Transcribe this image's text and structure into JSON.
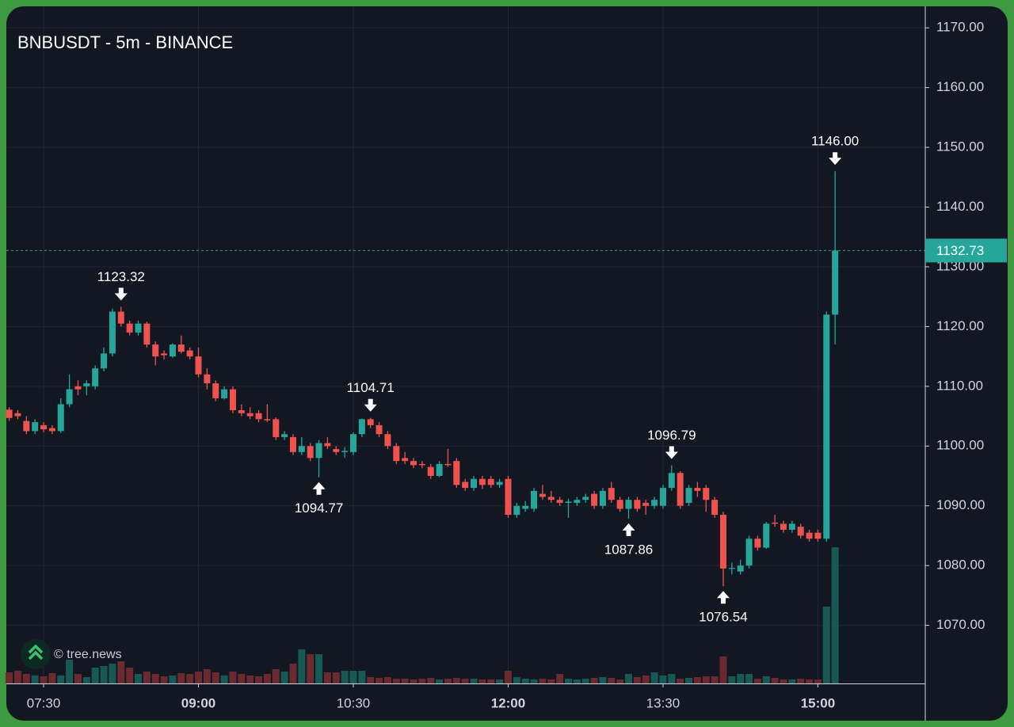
{
  "chart_data": {
    "type": "candlestick",
    "title": "BNBUSDT - 5m - BINANCE",
    "watermark": "© tree.news",
    "categories": [
      "07:10",
      "07:15",
      "07:20",
      "07:25",
      "07:30",
      "07:35",
      "07:40",
      "07:45",
      "07:50",
      "07:55",
      "08:00",
      "08:05",
      "08:10",
      "08:15",
      "08:20",
      "08:25",
      "08:30",
      "08:35",
      "08:40",
      "08:45",
      "08:50",
      "08:55",
      "09:00",
      "09:05",
      "09:10",
      "09:15",
      "09:20",
      "09:25",
      "09:30",
      "09:35",
      "09:40",
      "09:45",
      "09:50",
      "09:55",
      "10:00",
      "10:05",
      "10:10",
      "10:15",
      "10:20",
      "10:25",
      "10:30",
      "10:35",
      "10:40",
      "10:45",
      "10:50",
      "10:55",
      "11:00",
      "11:05",
      "11:10",
      "11:15",
      "11:20",
      "11:25",
      "11:30",
      "11:35",
      "11:40",
      "11:45",
      "11:50",
      "11:55",
      "12:00",
      "12:05",
      "12:10",
      "12:15",
      "12:20",
      "12:25",
      "12:30",
      "12:35",
      "12:40",
      "12:45",
      "12:50",
      "12:55",
      "13:00",
      "13:05",
      "13:10",
      "13:15",
      "13:20",
      "13:25",
      "13:30",
      "13:35",
      "13:40",
      "13:45",
      "13:50",
      "13:55",
      "14:00",
      "14:05",
      "14:10",
      "14:15",
      "14:20",
      "14:25",
      "14:30",
      "14:35",
      "14:40",
      "14:45",
      "14:50",
      "14:55",
      "15:00",
      "15:05",
      "15:10"
    ],
    "open": [
      1106.1,
      1105.5,
      1104.2,
      1102.5,
      1103.5,
      1103.0,
      1102.5,
      1107.0,
      1110.0,
      1110.0,
      1110.0,
      1113.0,
      1115.5,
      1122.5,
      1120.5,
      1119.0,
      1120.5,
      1117.0,
      1115.5,
      1115.0,
      1117.0,
      1116.0,
      1115.0,
      1112.0,
      1110.5,
      1108.0,
      1109.5,
      1106.0,
      1105.5,
      1105.5,
      1104.5,
      1104.5,
      1101.5,
      1101.5,
      1099.0,
      1100.0,
      1098.0,
      1100.5,
      1099.5,
      1099.0,
      1099.0,
      1102.0,
      1104.5,
      1103.5,
      1102.0,
      1100.0,
      1098.0,
      1097.5,
      1097.0,
      1096.5,
      1095.0,
      1097.0,
      1097.5,
      1094.0,
      1093.0,
      1094.5,
      1094.5,
      1093.5,
      1094.5,
      1088.5,
      1089.5,
      1089.5,
      1092.0,
      1091.5,
      1091.0,
      1090.5,
      1090.5,
      1091.0,
      1092.0,
      1090.0,
      1093.0,
      1091.0,
      1089.5,
      1091.0,
      1090.5,
      1090.0,
      1090.0,
      1093.0,
      1095.5,
      1090.5,
      1093.0,
      1093.0,
      1091.0,
      1088.5,
      1079.5,
      1079.0,
      1080.0,
      1084.5,
      1083.0,
      1087.2,
      1087.0,
      1086.0,
      1086.5,
      1085.5,
      1085.5,
      1084.5,
      1122.0
    ],
    "high": [
      1106.5,
      1106.0,
      1105.0,
      1104.5,
      1104.0,
      1103.5,
      1108.0,
      1112.0,
      1111.0,
      1111.0,
      1113.5,
      1116.5,
      1123.0,
      1123.32,
      1121.0,
      1121.0,
      1120.8,
      1117.5,
      1116.0,
      1117.2,
      1118.5,
      1116.5,
      1116.5,
      1113.0,
      1111.0,
      1110.0,
      1110.0,
      1107.0,
      1106.5,
      1106.0,
      1107.0,
      1104.8,
      1102.5,
      1102.0,
      1101.5,
      1100.5,
      1101.0,
      1101.5,
      1100.0,
      1099.8,
      1102.3,
      1104.6,
      1104.71,
      1104.0,
      1102.5,
      1100.5,
      1099.0,
      1098.0,
      1097.5,
      1097.0,
      1097.5,
      1099.5,
      1098.0,
      1094.5,
      1095.0,
      1095.0,
      1095.0,
      1094.5,
      1095.0,
      1090.5,
      1090.8,
      1093.0,
      1093.5,
      1092.5,
      1091.5,
      1091.2,
      1091.5,
      1092.0,
      1092.5,
      1093.0,
      1094.0,
      1091.5,
      1091.5,
      1091.5,
      1091.0,
      1091.5,
      1093.5,
      1096.79,
      1095.8,
      1093.5,
      1094.0,
      1093.5,
      1091.5,
      1089.0,
      1080.5,
      1081.0,
      1085.0,
      1085.0,
      1087.3,
      1088.5,
      1087.5,
      1087.5,
      1087.0,
      1086.0,
      1086.0,
      1122.5,
      1146.0
    ],
    "low": [
      1104.2,
      1104.5,
      1102.0,
      1102.0,
      1102.3,
      1102.0,
      1102.2,
      1106.5,
      1108.5,
      1108.5,
      1109.5,
      1112.5,
      1115.0,
      1120.0,
      1118.5,
      1118.5,
      1116.5,
      1113.5,
      1114.5,
      1114.8,
      1115.5,
      1114.5,
      1111.5,
      1109.5,
      1107.5,
      1107.8,
      1105.5,
      1105.0,
      1104.5,
      1104.0,
      1104.0,
      1101.0,
      1101.0,
      1098.5,
      1098.5,
      1097.5,
      1094.77,
      1099.5,
      1098.5,
      1098.0,
      1098.5,
      1101.5,
      1103.0,
      1101.5,
      1099.5,
      1097.0,
      1097.0,
      1096.3,
      1096.3,
      1094.5,
      1094.8,
      1096.5,
      1093.0,
      1092.5,
      1092.5,
      1092.8,
      1093.0,
      1093.0,
      1088.0,
      1088.0,
      1089.0,
      1089.0,
      1091.0,
      1090.5,
      1090.0,
      1088.0,
      1090.0,
      1090.5,
      1089.5,
      1089.5,
      1090.5,
      1089.0,
      1087.86,
      1089.0,
      1088.5,
      1089.5,
      1089.5,
      1092.5,
      1089.5,
      1090.0,
      1091.5,
      1089.0,
      1088.0,
      1076.54,
      1078.5,
      1078.5,
      1079.5,
      1082.5,
      1082.8,
      1086.5,
      1085.5,
      1085.5,
      1084.5,
      1084.0,
      1084.0,
      1084.0,
      1117.0
    ],
    "close": [
      1104.7,
      1105.0,
      1102.5,
      1104.0,
      1102.8,
      1102.5,
      1107.0,
      1109.5,
      1109.5,
      1110.5,
      1113.0,
      1115.5,
      1122.5,
      1120.5,
      1119.0,
      1120.5,
      1117.0,
      1115.0,
      1115.2,
      1117.0,
      1115.8,
      1115.0,
      1112.0,
      1110.5,
      1108.0,
      1109.5,
      1106.0,
      1105.5,
      1105.0,
      1104.5,
      1104.3,
      1101.5,
      1102.0,
      1099.0,
      1100.0,
      1098.0,
      1100.5,
      1100.0,
      1099.0,
      1099.2,
      1102.0,
      1104.5,
      1103.5,
      1102.0,
      1100.0,
      1097.5,
      1097.5,
      1096.8,
      1096.8,
      1095.0,
      1097.0,
      1096.8,
      1093.5,
      1093.0,
      1094.5,
      1093.5,
      1093.5,
      1094.0,
      1088.5,
      1090.0,
      1090.0,
      1092.5,
      1091.5,
      1091.0,
      1090.5,
      1090.7,
      1091.0,
      1091.5,
      1090.0,
      1092.5,
      1091.0,
      1089.5,
      1091.0,
      1089.5,
      1090.0,
      1091.0,
      1093.0,
      1095.5,
      1090.0,
      1093.0,
      1092.5,
      1091.0,
      1088.5,
      1079.5,
      1079.6,
      1080.0,
      1084.5,
      1083.0,
      1087.0,
      1087.0,
      1086.0,
      1087.0,
      1085.0,
      1084.5,
      1084.5,
      1122.0,
      1132.73
    ],
    "volume": [
      14,
      16,
      12,
      10,
      9,
      13,
      10,
      30,
      12,
      8,
      20,
      22,
      25,
      28,
      20,
      12,
      15,
      12,
      9,
      10,
      13,
      12,
      15,
      18,
      14,
      10,
      15,
      12,
      10,
      9,
      12,
      18,
      15,
      25,
      43,
      37,
      37,
      14,
      14,
      16,
      16,
      16,
      8,
      7,
      8,
      6,
      6,
      5,
      6,
      7,
      5,
      6,
      7,
      6,
      6,
      5,
      5,
      5,
      16,
      8,
      6,
      5,
      6,
      5,
      12,
      6,
      5,
      6,
      7,
      8,
      7,
      5,
      12,
      8,
      10,
      14,
      10,
      12,
      6,
      7,
      8,
      9,
      9,
      34,
      9,
      12,
      12,
      6,
      9,
      7,
      5,
      5,
      6,
      5,
      5,
      97,
      172
    ],
    "up_color": "#26a69a",
    "down_color": "#ef5350",
    "ylim": [
      1060.27,
      1173.6
    ],
    "yticks": [
      {
        "value": 1070,
        "label": "1070.00"
      },
      {
        "value": 1080,
        "label": "1080.00"
      },
      {
        "value": 1090,
        "label": "1090.00"
      },
      {
        "value": 1100,
        "label": "1100.00"
      },
      {
        "value": 1110,
        "label": "1110.00"
      },
      {
        "value": 1120,
        "label": "1120.00"
      },
      {
        "value": 1130,
        "label": "1130.00"
      },
      {
        "value": 1140,
        "label": "1140.00"
      },
      {
        "value": 1150,
        "label": "1150.00"
      },
      {
        "value": 1160,
        "label": "1160.00"
      },
      {
        "value": 1170,
        "label": "1170.00"
      }
    ],
    "xticks": [
      "07:30",
      "09:00",
      "10:30",
      "12:00",
      "13:30",
      "15:00"
    ],
    "grid": true,
    "last_price": 1132.73,
    "peaks": [
      {
        "x": "08:15",
        "value": 1123.32
      },
      {
        "x": "10:40",
        "value": 1104.71
      },
      {
        "x": "13:35",
        "value": 1096.79
      },
      {
        "x": "15:10",
        "value": 1146,
        "label": "1146.00"
      }
    ],
    "troughs": [
      {
        "x": "10:10",
        "value": 1094.77
      },
      {
        "x": "13:10",
        "value": 1087.86
      },
      {
        "x": "14:05",
        "value": 1076.54
      }
    ]
  }
}
